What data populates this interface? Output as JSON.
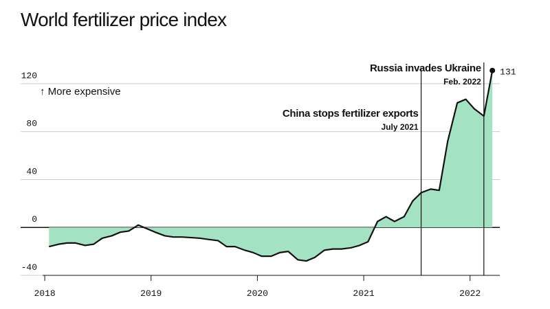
{
  "chart_data": {
    "type": "area",
    "title": "World fertilizer price index",
    "y_note": "↑ More expensive",
    "x": [
      2018.04,
      2018.13,
      2018.21,
      2018.29,
      2018.38,
      2018.46,
      2018.54,
      2018.63,
      2018.71,
      2018.79,
      2018.88,
      2018.96,
      2019.04,
      2019.13,
      2019.21,
      2019.29,
      2019.38,
      2019.46,
      2019.54,
      2019.63,
      2019.71,
      2019.79,
      2019.88,
      2019.96,
      2020.04,
      2020.13,
      2020.21,
      2020.29,
      2020.38,
      2020.46,
      2020.54,
      2020.63,
      2020.71,
      2020.79,
      2020.88,
      2020.96,
      2021.04,
      2021.13,
      2021.21,
      2021.29,
      2021.38,
      2021.46,
      2021.54,
      2021.63,
      2021.71,
      2021.79,
      2021.88,
      2021.96,
      2022.04,
      2022.13,
      2022.21
    ],
    "values": [
      -16,
      -14,
      -13,
      -13,
      -15,
      -14,
      -9,
      -7,
      -4,
      -3,
      2,
      -1,
      -4,
      -7,
      -8,
      -8,
      -8.5,
      -9,
      -10,
      -11,
      -16,
      -16,
      -19,
      -21,
      -24,
      -24,
      -21,
      -20,
      -27,
      -28,
      -25,
      -19,
      -18,
      -18,
      -17,
      -15,
      -12,
      5,
      9,
      5,
      9,
      22,
      29,
      32,
      31,
      72,
      104,
      107,
      99,
      93,
      131
    ],
    "color": "#a3e2c2",
    "line_color": "#111111",
    "xlim": [
      2017.98,
      2022.28
    ],
    "xticks": [
      2018,
      2019,
      2020,
      2021,
      2022
    ],
    "ylim": [
      -40,
      140
    ],
    "yticks": [
      -40,
      0,
      40,
      80,
      120
    ],
    "grid": true,
    "annotations": [
      {
        "x": 2021.54,
        "label": "China stops fertilizer exports",
        "sublabel": "July 2021"
      },
      {
        "x": 2022.13,
        "label": "Russia invades Ukraine",
        "sublabel": "Feb. 2022"
      }
    ]
  }
}
